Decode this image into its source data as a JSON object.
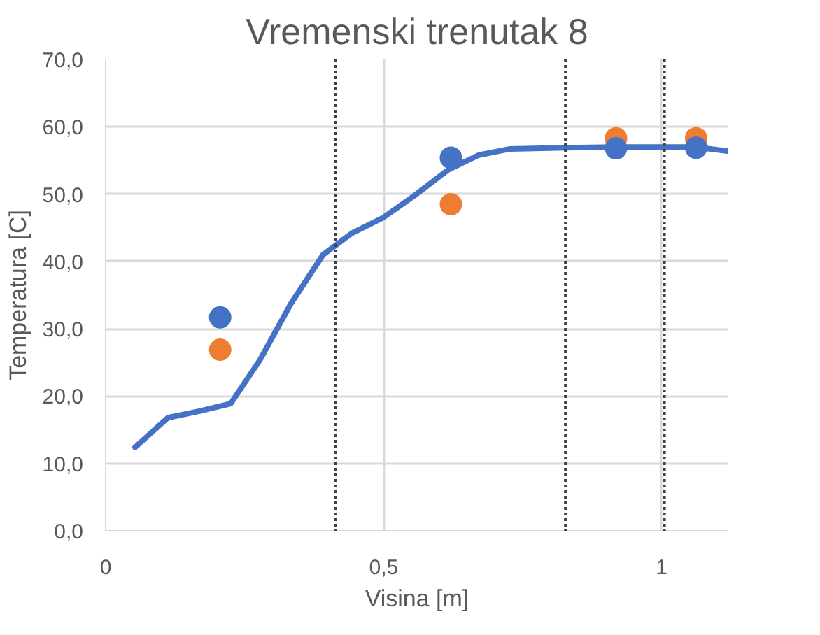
{
  "chart_data": {
    "type": "line",
    "title": "Vremenski trenutak 8",
    "xlabel": "Visina [m]",
    "ylabel": "Temperatura [C]",
    "xlim": [
      0,
      1.12
    ],
    "ylim": [
      0,
      70
    ],
    "xticks": [
      {
        "value": 0,
        "label": "0"
      },
      {
        "value": 0.5,
        "label": "0,5"
      },
      {
        "value": 1,
        "label": "1"
      }
    ],
    "yticks": [
      {
        "value": 0,
        "label": "0,0"
      },
      {
        "value": 10,
        "label": "10,0"
      },
      {
        "value": 20,
        "label": "20,0"
      },
      {
        "value": 30,
        "label": "30,0"
      },
      {
        "value": 40,
        "label": "40,0"
      },
      {
        "value": 50,
        "label": "50,0"
      },
      {
        "value": 60,
        "label": "60,0"
      },
      {
        "value": 70,
        "label": "70,0"
      }
    ],
    "grid": true,
    "series": [
      {
        "color": "#4472c4",
        "marker": "none",
        "line_style": "solid",
        "x": [
          0.053,
          0.112,
          0.17,
          0.225,
          0.277,
          0.333,
          0.391,
          0.443,
          0.499,
          0.554,
          0.616,
          0.671,
          0.726,
          0.827,
          0.918,
          1.062,
          1.118
        ],
        "values": [
          12.4,
          16.8,
          17.8,
          18.9,
          25.3,
          33.7,
          41.0,
          44.2,
          46.5,
          49.7,
          53.6,
          55.8,
          56.7,
          56.9,
          57.0,
          57.0,
          56.4
        ]
      },
      {
        "type": "scatter",
        "color": "#ed7d31",
        "marker": "circle",
        "x": [
          0.206,
          0.621,
          0.918,
          1.062
        ],
        "values": [
          26.9,
          48.5,
          58.3,
          58.3
        ]
      },
      {
        "type": "scatter",
        "color": "#4472c4",
        "marker": "circle",
        "x": [
          0.206,
          0.621,
          0.918,
          1.062
        ],
        "values": [
          31.7,
          55.4,
          56.8,
          56.9
        ]
      }
    ],
    "ref_lines": [
      {
        "axis": "x",
        "value": 0.413,
        "color": "#404040",
        "line_style": "dotted"
      },
      {
        "axis": "x",
        "value": 0.827,
        "color": "#404040",
        "line_style": "dotted"
      },
      {
        "axis": "x",
        "value": 1.005,
        "color": "#404040",
        "line_style": "dotted"
      }
    ]
  }
}
